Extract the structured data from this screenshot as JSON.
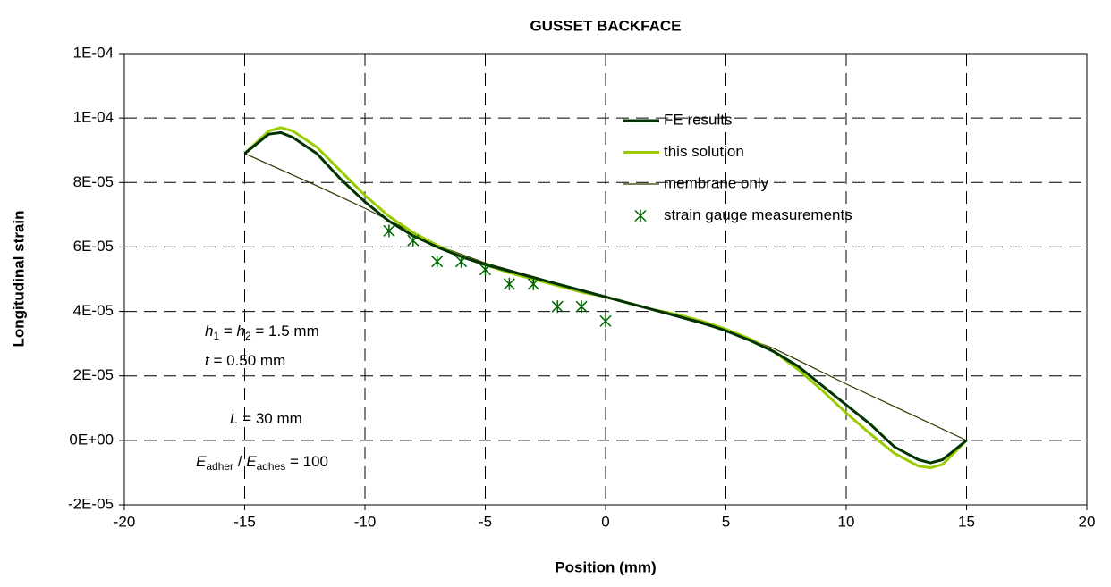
{
  "chart_data": {
    "type": "line",
    "title": "GUSSET BACKFACE",
    "xlabel": "Position (mm)",
    "ylabel": "Longitudinal strain",
    "xlim": [
      -20,
      20
    ],
    "xticks": [
      -20,
      -15,
      -10,
      -5,
      0,
      5,
      10,
      15,
      20
    ],
    "ylim": [
      -2e-05,
      0.00012
    ],
    "yticks": [
      {
        "value": -2e-05,
        "label": "-2E-05"
      },
      {
        "value": 0,
        "label": "0E+00"
      },
      {
        "value": 2e-05,
        "label": "2E-05"
      },
      {
        "value": 4e-05,
        "label": "4E-05"
      },
      {
        "value": 6e-05,
        "label": "6E-05"
      },
      {
        "value": 8e-05,
        "label": "8E-05"
      },
      {
        "value": 0.0001,
        "label": "1E-04"
      },
      {
        "value": 0.00012,
        "label": "1E-04"
      }
    ],
    "grid": true,
    "series": [
      {
        "name": "FE results",
        "color": "#003300",
        "kind": "line",
        "width": 3,
        "x": [
          -15,
          -14,
          -13.5,
          -13,
          -12,
          -11,
          -10,
          -9,
          -8,
          -7,
          -6,
          -5,
          -4,
          -3,
          -2,
          -1,
          0,
          1,
          2,
          3,
          4,
          5,
          6,
          7,
          8,
          9,
          10,
          11,
          12,
          13,
          13.5,
          14,
          15
        ],
        "values": [
          8.9e-05,
          9.5e-05,
          9.55e-05,
          9.4e-05,
          8.9e-05,
          8.1e-05,
          7.4e-05,
          6.8e-05,
          6.35e-05,
          6e-05,
          5.7e-05,
          5.45e-05,
          5.25e-05,
          5.05e-05,
          4.85e-05,
          4.65e-05,
          4.45e-05,
          4.25e-05,
          4.05e-05,
          3.85e-05,
          3.65e-05,
          3.4e-05,
          3.1e-05,
          2.75e-05,
          2.3e-05,
          1.7e-05,
          1.1e-05,
          5e-06,
          -2e-06,
          -6e-06,
          -7e-06,
          -6e-06,
          0
        ]
      },
      {
        "name": "this solution",
        "color": "#99cc00",
        "kind": "line",
        "width": 3,
        "x": [
          -15,
          -14,
          -13.5,
          -13,
          -12,
          -11,
          -10,
          -9,
          -8,
          -7,
          -6,
          -5,
          -4,
          -3,
          -2,
          -1,
          0,
          1,
          2,
          3,
          4,
          5,
          6,
          7,
          8,
          9,
          10,
          11,
          12,
          13,
          13.5,
          14,
          15
        ],
        "values": [
          8.9e-05,
          9.6e-05,
          9.7e-05,
          9.6e-05,
          9.1e-05,
          8.35e-05,
          7.6e-05,
          6.95e-05,
          6.45e-05,
          6.05e-05,
          5.7e-05,
          5.45e-05,
          5.2e-05,
          5e-05,
          4.8e-05,
          4.6e-05,
          4.45e-05,
          4.25e-05,
          4.05e-05,
          3.9e-05,
          3.7e-05,
          3.45e-05,
          3.15e-05,
          2.75e-05,
          2.2e-05,
          1.55e-05,
          8.5e-06,
          2e-06,
          -4e-06,
          -8e-06,
          -8.5e-06,
          -7.5e-06,
          0
        ]
      },
      {
        "name": "membrane only",
        "color": "#333300",
        "kind": "line",
        "width": 1.2,
        "x": [
          -15,
          -12,
          -10,
          -8,
          -7,
          -5,
          0,
          5,
          7,
          10,
          12,
          15
        ],
        "values": [
          8.9e-05,
          7.9e-05,
          7.2e-05,
          6.45e-05,
          6.05e-05,
          5.5e-05,
          4.45e-05,
          3.4e-05,
          2.85e-05,
          1.75e-05,
          1.05e-05,
          0
        ]
      },
      {
        "name": "strain gauge measurements",
        "color": "#006600",
        "kind": "scatter",
        "x": [
          -9,
          -8,
          -7,
          -6,
          -5,
          -4,
          -3,
          -2,
          -1,
          0
        ],
        "values": [
          6.5e-05,
          6.2e-05,
          5.55e-05,
          5.55e-05,
          5.3e-05,
          4.85e-05,
          4.85e-05,
          4.15e-05,
          4.15e-05,
          3.7e-05
        ]
      }
    ],
    "annotations": [
      [
        "h",
        "1",
        " = ",
        "h",
        "2",
        " = 1.5 mm"
      ],
      [
        "t",
        " = 0.50 mm"
      ],
      [
        "L",
        " = 30 mm"
      ],
      [
        "E",
        "adher",
        " / ",
        "E",
        "adhes",
        " = 100"
      ]
    ]
  }
}
